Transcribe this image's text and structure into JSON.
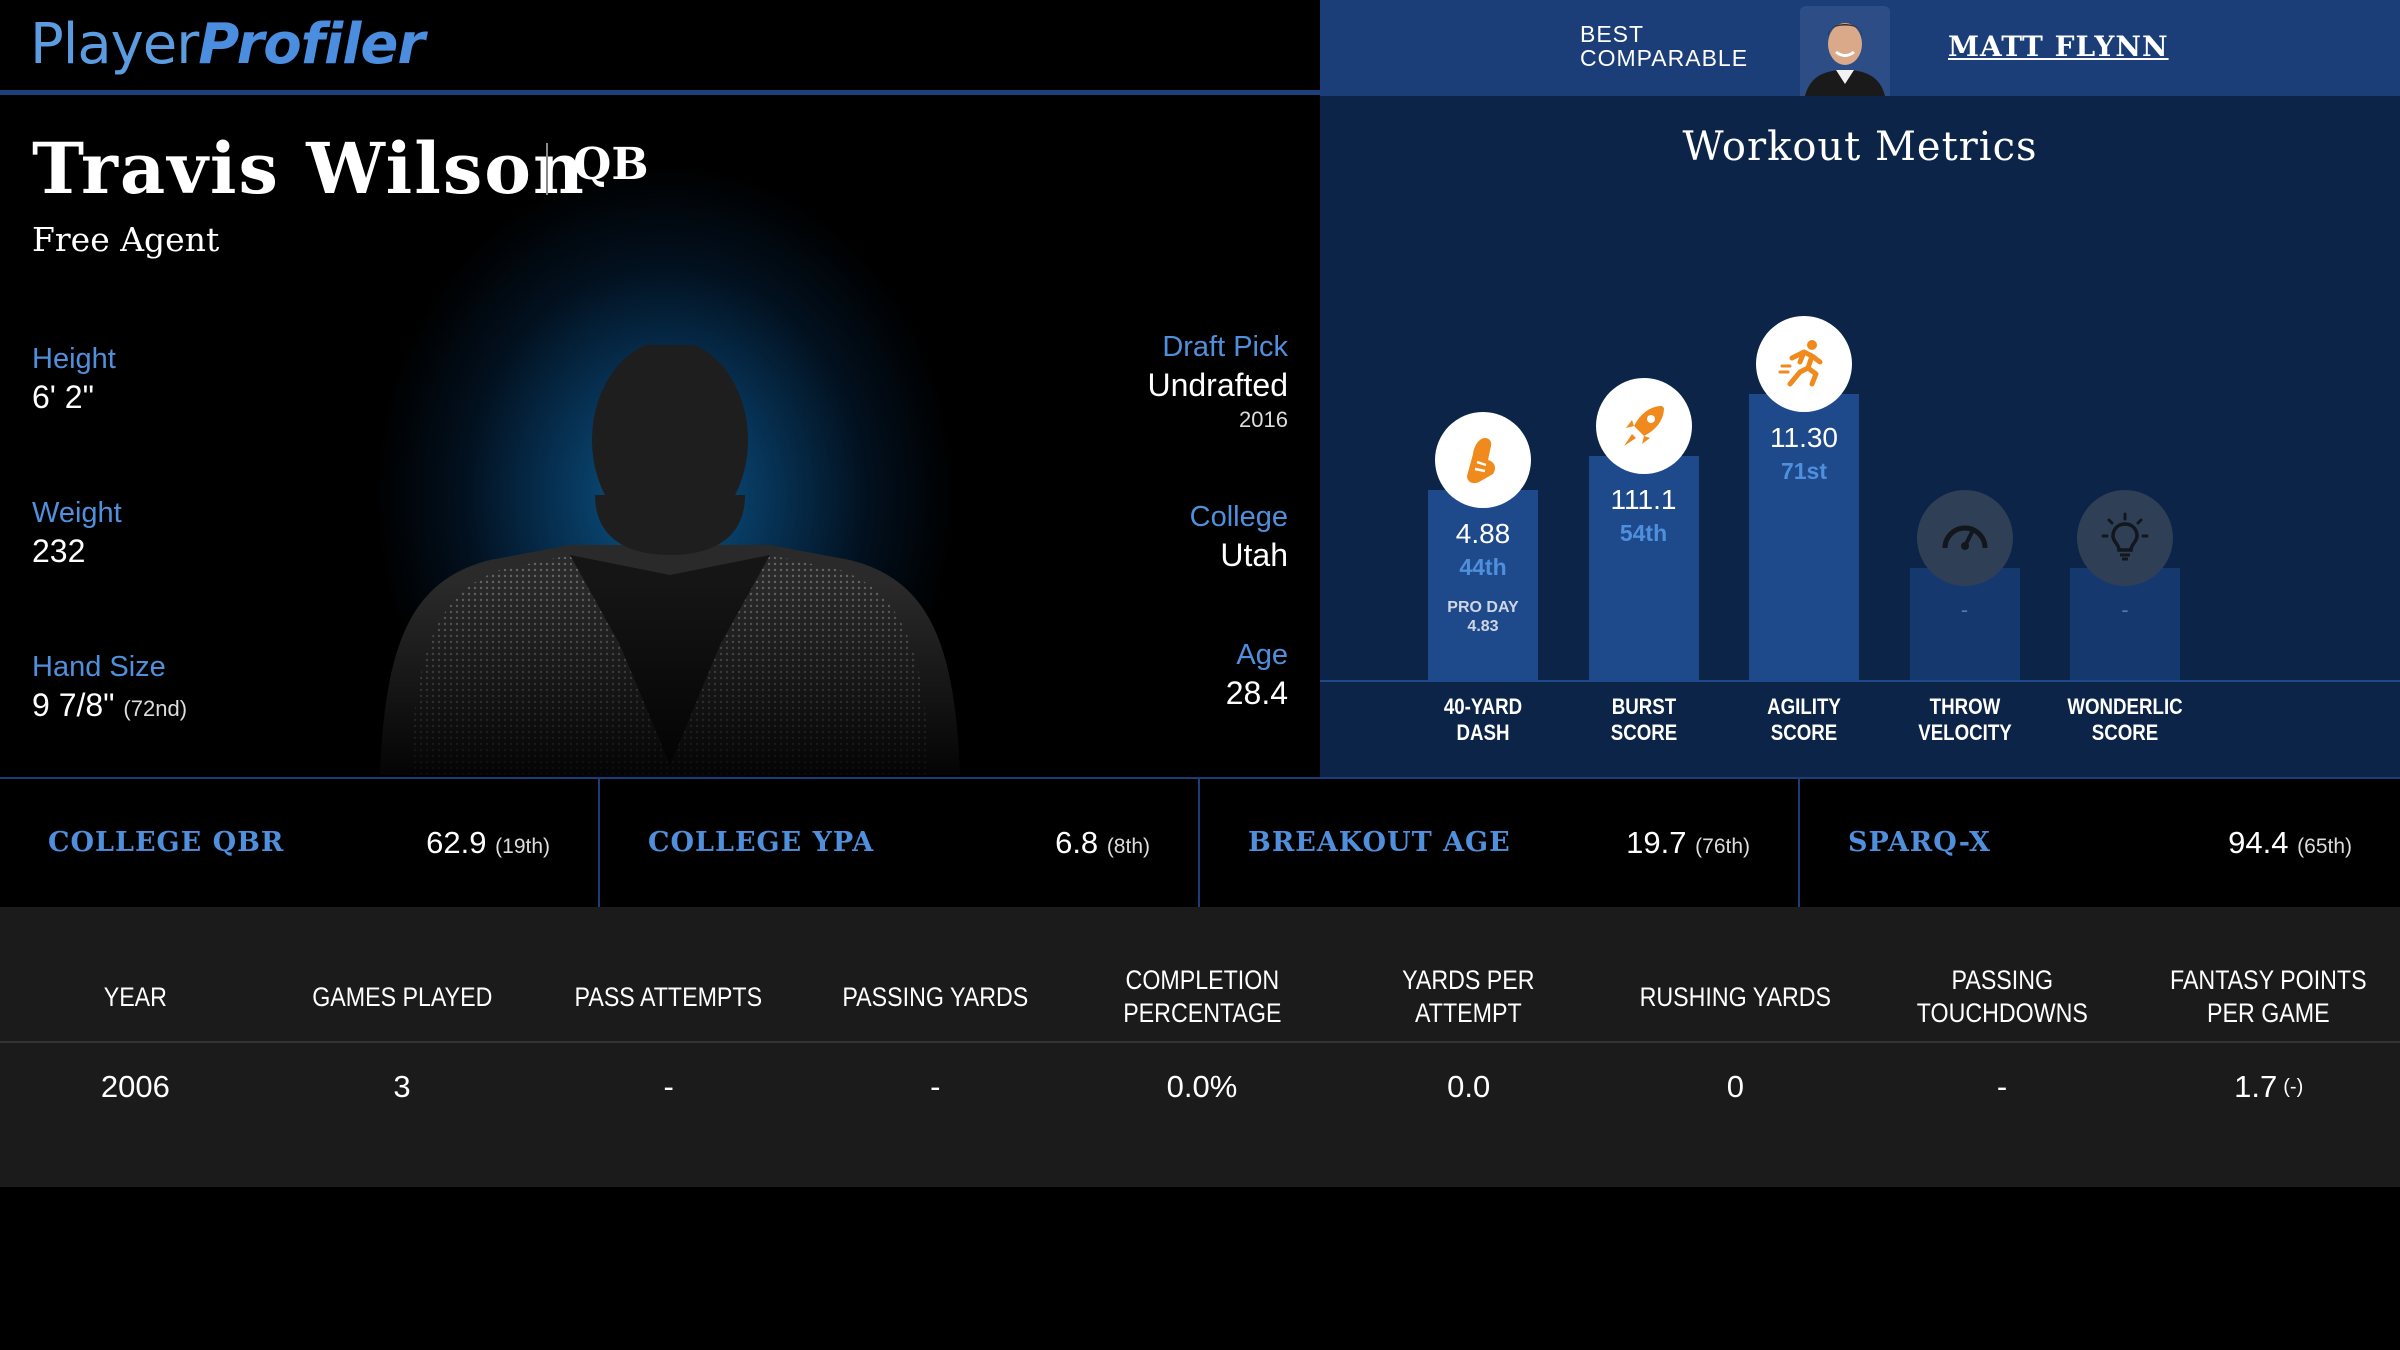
{
  "brand": {
    "part1": "Player",
    "part2": "Profiler"
  },
  "best_comparable": {
    "label_line1": "BEST",
    "label_line2": "COMPARABLE",
    "name": "MATT FLYNN"
  },
  "player": {
    "name": "Travis Wilson",
    "position": "QB",
    "team": "Free Agent",
    "height_label": "Height",
    "height": "6' 2\"",
    "weight_label": "Weight",
    "weight": "232",
    "hand_label": "Hand Size",
    "hand": "9 7/8\"",
    "hand_rank": "(72nd)",
    "draft_label": "Draft Pick",
    "draft": "Undrafted",
    "draft_year": "2016",
    "college_label": "College",
    "college": "Utah",
    "age_label": "Age",
    "age": "28.4"
  },
  "workout": {
    "title": "Workout Metrics",
    "metrics": [
      {
        "label1": "40-YARD",
        "label2": "DASH",
        "value": "4.88",
        "pct": "44th",
        "note1": "PRO DAY",
        "note2": "4.83",
        "icon": "shoe-icon",
        "level": 0.56,
        "active": true
      },
      {
        "label1": "BURST",
        "label2": "SCORE",
        "value": "111.1",
        "pct": "54th",
        "icon": "rocket-icon",
        "level": 0.66,
        "active": true
      },
      {
        "label1": "AGILITY",
        "label2": "SCORE",
        "value": "11.30",
        "pct": "71st",
        "icon": "runner-icon",
        "level": 0.84,
        "active": true
      },
      {
        "label1": "THROW",
        "label2": "VELOCITY",
        "value": "-",
        "icon": "speedometer-icon",
        "level": 0.33,
        "active": false
      },
      {
        "label1": "WONDERLIC",
        "label2": "SCORE",
        "value": "-",
        "icon": "lightbulb-icon",
        "level": 0.33,
        "active": false
      }
    ],
    "colors": {
      "icon_accent": "#f08a1c",
      "bar": "#1e4a8c"
    }
  },
  "key_stats": [
    {
      "label": "COLLEGE QBR",
      "value": "62.9",
      "rank": "(19th)"
    },
    {
      "label": "COLLEGE YPA",
      "value": "6.8",
      "rank": "(8th)"
    },
    {
      "label": "BREAKOUT AGE",
      "value": "19.7",
      "rank": "(76th)"
    },
    {
      "label": "SPARQ-X",
      "value": "94.4",
      "rank": "(65th)"
    }
  ],
  "table": {
    "headers": [
      "YEAR",
      "GAMES PLAYED",
      "PASS ATTEMPTS",
      "PASSING YARDS",
      "COMPLETION PERCENTAGE",
      "YARDS PER ATTEMPT",
      "RUSHING YARDS",
      "PASSING TOUCHDOWNS",
      "FANTASY POINTS PER GAME"
    ],
    "rows": [
      [
        "2006",
        "3",
        "-",
        "-",
        "0.0%",
        "0.0",
        "0",
        "-",
        "1.7"
      ]
    ],
    "last_cell_suffix": "(-)"
  }
}
